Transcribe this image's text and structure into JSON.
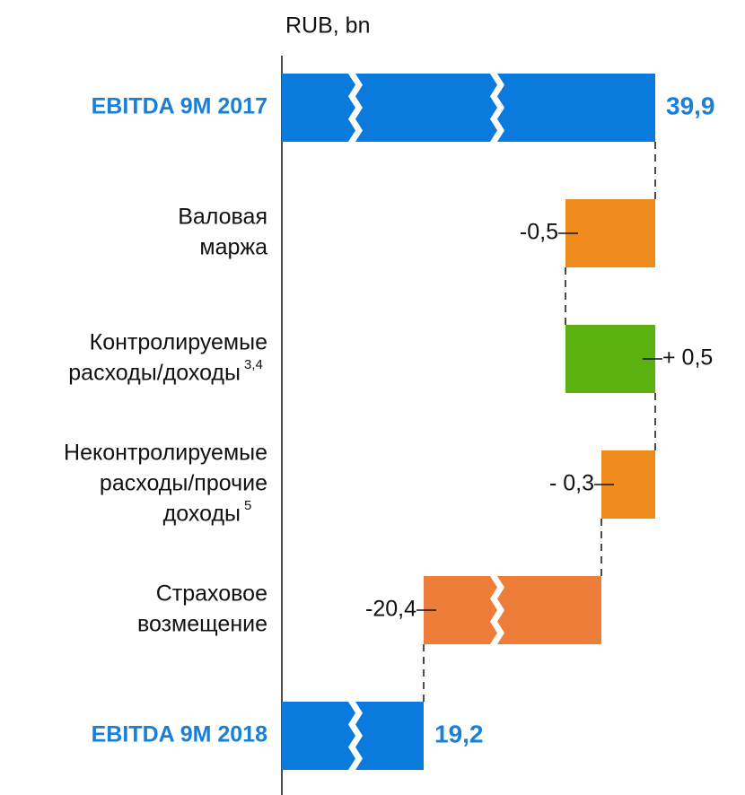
{
  "chart_data": {
    "type": "waterfall",
    "x_label": "RUB, bn",
    "categories": [
      [
        "EBITDA 9M 2017"
      ],
      [
        "Валовая",
        "маржа"
      ],
      [
        "Контролируемые",
        "расходы/доходы"
      ],
      [
        "Неконтролируемые",
        "расходы/прочие",
        "доходы"
      ],
      [
        "Страховое",
        "возмещение"
      ],
      [
        "EBITDA 9M 2018"
      ]
    ],
    "notes": [
      null,
      null,
      "3,4",
      "5",
      null,
      null
    ],
    "values": [
      39.9,
      -0.5,
      0.5,
      -0.3,
      -20.4,
      19.2
    ],
    "value_labels": [
      "39,9",
      "-0,5",
      "+ 0,5",
      "- 0,3",
      "-20,4",
      "19,2"
    ],
    "totals": [
      true,
      false,
      false,
      false,
      false,
      true
    ],
    "colors": [
      "#0a7bdc",
      "#f08c1e",
      "#5ab10f",
      "#f08c1e",
      "#ee7d3a",
      "#0a7bdc"
    ]
  }
}
